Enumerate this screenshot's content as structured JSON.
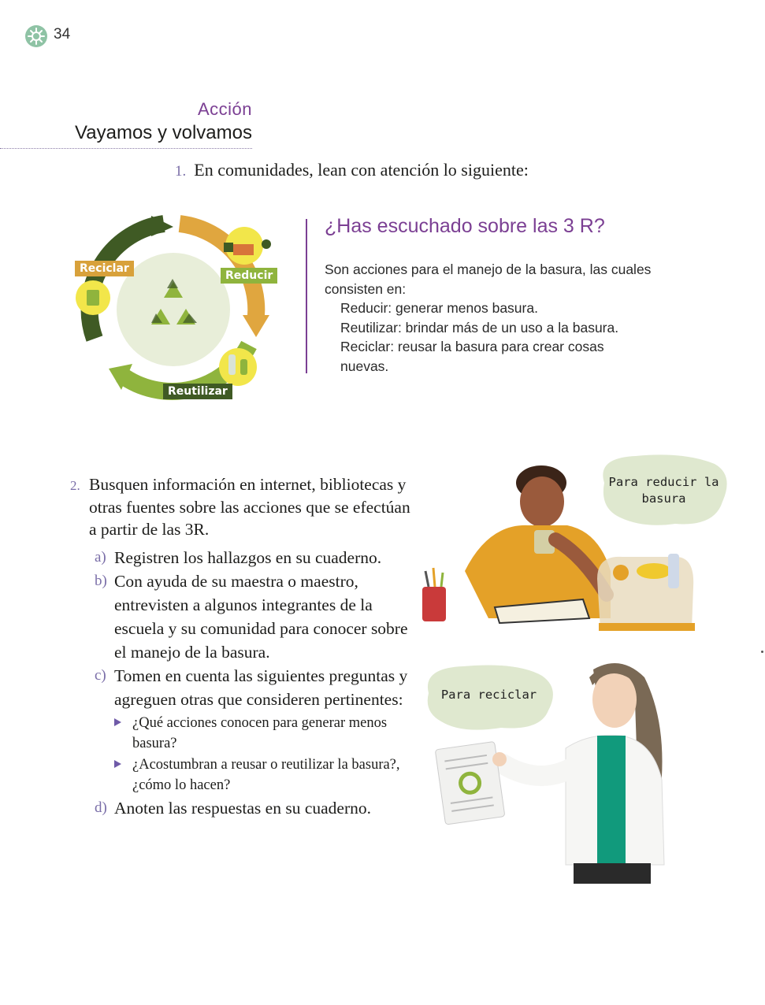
{
  "page": {
    "number": "34"
  },
  "section": {
    "label": "Acción",
    "title": "Vayamos y volvamos"
  },
  "q1": {
    "number": "1.",
    "text": "En comunidades, lean con atención lo siguiente:"
  },
  "cycle": {
    "labels": {
      "reciclar": "Reciclar",
      "reducir": "Reducir",
      "reutilizar": "Reutilizar"
    },
    "colors": {
      "reduce": "#e0a63f",
      "reuse": "#8fb43d",
      "recycle": "#3f5a24",
      "center": "#e8eed9"
    }
  },
  "info": {
    "heading": "¿Has escuchado sobre las 3 R?",
    "intro": "Son acciones para el manejo de la basura, las cuales consisten en:",
    "items": [
      "Reducir: generar menos basura.",
      "Reutilizar: brindar más de un uso a la basura.",
      "Reciclar: reusar la basura para crear cosas nuevas."
    ]
  },
  "q2": {
    "number": "2.",
    "text": "Busquen información en internet, bibliotecas y otras fuentes sobre las acciones que se efectúan a partir de las 3R.",
    "items": [
      {
        "letter": "a)",
        "text": "Registren los hallazgos en su cuaderno."
      },
      {
        "letter": "b)",
        "text": "Con ayuda de su maestra o maestro, entrevisten a algunos integrantes de la escuela y su comunidad para conocer sobre el manejo de la basura."
      },
      {
        "letter": "c)",
        "text": "Tomen en cuenta las siguientes preguntas y agreguen otras que consideren pertinentes:"
      },
      {
        "letter": "d)",
        "text": "Anoten las respuestas en su cuaderno."
      }
    ],
    "bullets": [
      "¿Qué acciones conocen para generar menos basura?",
      "¿Acostumbran a reusar o reutilizar la basura?, ¿cómo lo hacen?"
    ]
  },
  "bubbles": {
    "reduce": "Para reducir la basura",
    "recycle": "Para reciclar"
  },
  "colors": {
    "accent": "#7b3f93",
    "number": "#7a6ea8",
    "bubble": "#dfe8cf"
  }
}
